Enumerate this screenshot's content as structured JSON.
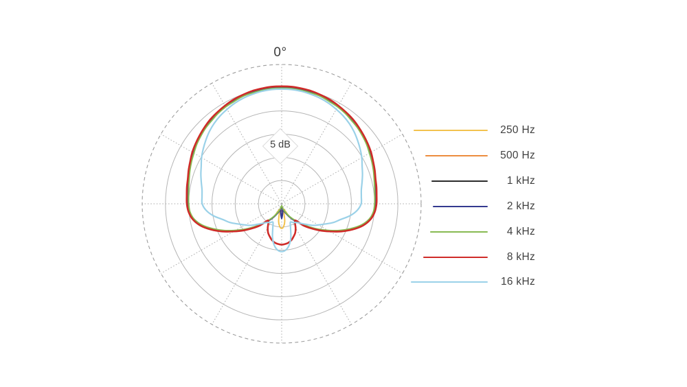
{
  "page": {
    "background": "#ffffff",
    "text_color": "#3f3f3f"
  },
  "chart_data": {
    "type": "line",
    "projection": "polar",
    "title": "",
    "top_axis_label": "0°",
    "ring_label": "5 dB",
    "ring_step_db": 5,
    "db_range": [
      0,
      -30
    ],
    "angle_grid_step_deg": 30,
    "grid": {
      "rings_solid": 5,
      "outer_ring_dashed": true,
      "solid_ring_color": "#b5b5b5",
      "dashed_ring_color": "#9c9c9c",
      "radial_line_color": "#ababab",
      "grid_on": true
    },
    "legend": {
      "position": "right"
    },
    "angles_deg": [
      0,
      5,
      10,
      15,
      20,
      25,
      30,
      35,
      40,
      45,
      50,
      55,
      60,
      65,
      70,
      75,
      80,
      85,
      90,
      95,
      100,
      105,
      110,
      115,
      120,
      125,
      130,
      135,
      140,
      145,
      150,
      155,
      160,
      165,
      170,
      175,
      180
    ],
    "series": [
      {
        "name": "250 Hz",
        "color": "#F2C24E",
        "gain_db": [
          -4.9,
          -4.9,
          -5.0,
          -5.1,
          -5.2,
          -5.5,
          -5.7,
          -6.0,
          -6.4,
          -6.7,
          -7.1,
          -7.5,
          -8.0,
          -8.4,
          -8.8,
          -9.2,
          -9.5,
          -9.7,
          -9.8,
          -10.0,
          -10.7,
          -12.1,
          -14.1,
          -16.2,
          -18.4,
          -20.3,
          -22.1,
          -23.7,
          -25.0,
          -26.0,
          -27.1,
          -28.4,
          -28.7,
          -28.2,
          -26.2,
          -25.1,
          -24.7
        ]
      },
      {
        "name": "500 Hz",
        "color": "#EC8C3E",
        "gain_db": [
          -4.9,
          -4.9,
          -5.0,
          -5.1,
          -5.2,
          -5.5,
          -5.7,
          -6.0,
          -6.4,
          -6.7,
          -7.1,
          -7.5,
          -8.0,
          -8.4,
          -8.8,
          -9.2,
          -9.5,
          -9.7,
          -9.8,
          -10.0,
          -10.7,
          -12.1,
          -14.1,
          -16.2,
          -18.4,
          -20.3,
          -22.1,
          -23.7,
          -25.0,
          -26.0,
          -26.9,
          -27.7,
          -28.2,
          -28.7,
          -28.8,
          -28.6,
          -28.4
        ]
      },
      {
        "name": "1 kHz",
        "color": "#2B2B2B",
        "gain_db": [
          -4.9,
          -4.9,
          -5.0,
          -5.1,
          -5.2,
          -5.5,
          -5.7,
          -6.0,
          -6.4,
          -6.7,
          -7.1,
          -7.5,
          -8.0,
          -8.4,
          -8.8,
          -9.2,
          -9.5,
          -9.7,
          -9.8,
          -10.0,
          -10.7,
          -12.1,
          -14.1,
          -16.2,
          -18.4,
          -20.3,
          -22.1,
          -23.7,
          -25.0,
          -26.0,
          -26.9,
          -27.7,
          -28.2,
          -28.7,
          -29.0,
          -29.3,
          -29.4
        ]
      },
      {
        "name": "2 kHz",
        "color": "#34398F",
        "gain_db": [
          -4.9,
          -4.9,
          -5.0,
          -5.1,
          -5.2,
          -5.5,
          -5.7,
          -6.0,
          -6.4,
          -6.7,
          -7.1,
          -7.5,
          -8.0,
          -8.4,
          -8.8,
          -9.2,
          -9.5,
          -9.7,
          -9.8,
          -10.0,
          -10.7,
          -12.1,
          -14.1,
          -16.2,
          -18.4,
          -20.3,
          -22.1,
          -23.7,
          -25.0,
          -26.0,
          -26.9,
          -27.7,
          -28.2,
          -28.7,
          -28.8,
          -27.9,
          -26.8
        ]
      },
      {
        "name": "4 kHz",
        "color": "#87BA51",
        "gain_db": [
          -5.1,
          -5.1,
          -5.2,
          -5.3,
          -5.4,
          -5.7,
          -5.9,
          -6.2,
          -6.6,
          -6.9,
          -7.3,
          -7.7,
          -8.2,
          -8.6,
          -9.0,
          -9.4,
          -9.7,
          -9.9,
          -10.0,
          -10.2,
          -10.9,
          -12.3,
          -14.3,
          -16.4,
          -18.6,
          -20.5,
          -22.3,
          -23.9,
          -25.2,
          -26.2,
          -27.1,
          -27.9,
          -28.4,
          -28.9,
          -29.3,
          -29.5,
          -29.6
        ]
      },
      {
        "name": "8 kHz",
        "color": "#CF2B28",
        "gain_db": [
          -4.7,
          -4.7,
          -4.8,
          -4.9,
          -5.1,
          -5.3,
          -5.6,
          -5.9,
          -6.2,
          -6.6,
          -7.0,
          -7.4,
          -7.8,
          -8.3,
          -8.7,
          -9.1,
          -9.3,
          -9.5,
          -9.6,
          -9.9,
          -10.6,
          -11.9,
          -13.8,
          -15.9,
          -18.1,
          -20.0,
          -21.8,
          -23.4,
          -25.3,
          -25.0,
          -24.0,
          -23.1,
          -22.5,
          -21.9,
          -21.5,
          -21.3,
          -21.2
        ]
      },
      {
        "name": "16 kHz",
        "color": "#9AD1E8",
        "gain_db": [
          -5.3,
          -5.3,
          -5.4,
          -5.6,
          -5.8,
          -6.1,
          -6.5,
          -6.9,
          -7.4,
          -8.0,
          -8.7,
          -9.4,
          -10.1,
          -10.9,
          -11.5,
          -12.1,
          -12.6,
          -12.8,
          -12.9,
          -13.7,
          -15.1,
          -16.9,
          -18.2,
          -19.7,
          -20.9,
          -21.9,
          -23.1,
          -24.0,
          -24.7,
          -25.1,
          -25.4,
          -25.6,
          -24.4,
          -22.4,
          -20.9,
          -20.0,
          -19.7
        ]
      }
    ]
  }
}
